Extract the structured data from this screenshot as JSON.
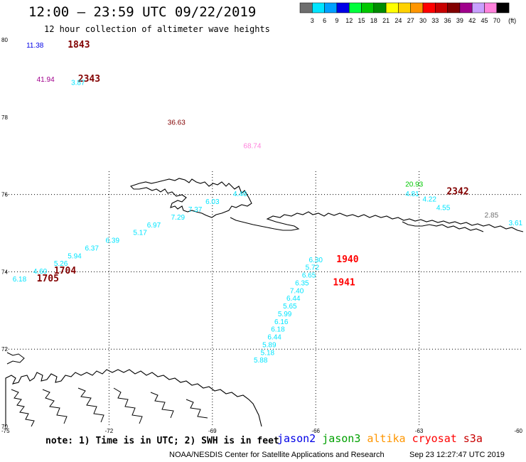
{
  "header": {
    "title": "12:00 – 23:59 UTC 09/22/2019",
    "subtitle": "12 hour collection of altimeter wave heights"
  },
  "legend": {
    "unit": "(ft)",
    "items": [
      {
        "label": "3",
        "color": "#6e6e6e"
      },
      {
        "label": "6",
        "color": "#00e5ff"
      },
      {
        "label": "9",
        "color": "#00a0ff"
      },
      {
        "label": "12",
        "color": "#0000e6"
      },
      {
        "label": "15",
        "color": "#00ff3c"
      },
      {
        "label": "18",
        "color": "#00c800"
      },
      {
        "label": "21",
        "color": "#008c00"
      },
      {
        "label": "24",
        "color": "#ffff00"
      },
      {
        "label": "27",
        "color": "#ffd200"
      },
      {
        "label": "30",
        "color": "#ff9600"
      },
      {
        "label": "33",
        "color": "#ff0000"
      },
      {
        "label": "36",
        "color": "#c80000"
      },
      {
        "label": "39",
        "color": "#820000"
      },
      {
        "label": "42",
        "color": "#a0008c"
      },
      {
        "label": "45",
        "color": "#c8a0ff"
      },
      {
        "label": "70",
        "color": "#ff82dc"
      },
      {
        "label": "",
        "color": "#000000"
      }
    ]
  },
  "map": {
    "lat_labels": [
      "80",
      "78",
      "76",
      "74",
      "72",
      "70"
    ],
    "lon_labels": [
      "-75",
      "-72",
      "-69",
      "-66",
      "-63",
      "-60"
    ],
    "labels": [
      {
        "text": "11.38",
        "lat": 79.8,
        "lon": -74.4,
        "color": "#0000e6"
      },
      {
        "text": "1843",
        "lat": 79.8,
        "lon": -73.2,
        "color": "#820000",
        "big": true
      },
      {
        "text": "41.94",
        "lat": 78.92,
        "lon": -74.1,
        "color": "#a0008c"
      },
      {
        "text": "2343",
        "lat": 78.92,
        "lon": -72.9,
        "color": "#820000",
        "big": true
      },
      {
        "text": "3.87",
        "lat": 78.83,
        "lon": -73.1,
        "color": "#00e5ff"
      },
      {
        "text": "36.63",
        "lat": 77.8,
        "lon": -70.3,
        "color": "#820000"
      },
      {
        "text": "68.74",
        "lat": 77.2,
        "lon": -68.1,
        "color": "#ff82dc"
      },
      {
        "text": "4.46",
        "lat": 75.96,
        "lon": -68.4,
        "color": "#00e5ff"
      },
      {
        "text": "6.03",
        "lat": 75.75,
        "lon": -69.2,
        "color": "#00e5ff"
      },
      {
        "text": "7.37",
        "lat": 75.55,
        "lon": -69.7,
        "color": "#00e5ff"
      },
      {
        "text": "7.29",
        "lat": 75.35,
        "lon": -70.2,
        "color": "#00e5ff"
      },
      {
        "text": "6.97",
        "lat": 75.15,
        "lon": -70.9,
        "color": "#00e5ff"
      },
      {
        "text": "5.17",
        "lat": 74.95,
        "lon": -71.3,
        "color": "#00e5ff"
      },
      {
        "text": "6.39",
        "lat": 74.75,
        "lon": -72.1,
        "color": "#00e5ff"
      },
      {
        "text": "6.37",
        "lat": 74.55,
        "lon": -72.7,
        "color": "#00e5ff"
      },
      {
        "text": "5.94",
        "lat": 74.35,
        "lon": -73.2,
        "color": "#00e5ff"
      },
      {
        "text": "5.26",
        "lat": 74.15,
        "lon": -73.6,
        "color": "#00e5ff"
      },
      {
        "text": "4.60",
        "lat": 73.95,
        "lon": -74.2,
        "color": "#00e5ff"
      },
      {
        "text": "1704",
        "lat": 73.95,
        "lon": -73.6,
        "color": "#820000",
        "big": true
      },
      {
        "text": "6.18",
        "lat": 73.75,
        "lon": -74.8,
        "color": "#00e5ff"
      },
      {
        "text": "1705",
        "lat": 73.75,
        "lon": -74.1,
        "color": "#820000",
        "big": true
      },
      {
        "text": "20.93",
        "lat": 76.2,
        "lon": -63.4,
        "color": "#00c800"
      },
      {
        "text": "4.81",
        "lat": 75.96,
        "lon": -63.4,
        "color": "#00e5ff"
      },
      {
        "text": "2342",
        "lat": 76.0,
        "lon": -62.2,
        "color": "#820000",
        "big": true
      },
      {
        "text": "4.22",
        "lat": 75.82,
        "lon": -62.9,
        "color": "#00e5ff"
      },
      {
        "text": "4.55",
        "lat": 75.6,
        "lon": -62.5,
        "color": "#00e5ff"
      },
      {
        "text": "2.85",
        "lat": 75.4,
        "lon": -61.1,
        "color": "#6e6e6e"
      },
      {
        "text": "3.61",
        "lat": 75.2,
        "lon": -60.4,
        "color": "#00e5ff"
      },
      {
        "text": "6.30",
        "lat": 74.25,
        "lon": -66.2,
        "color": "#00e5ff"
      },
      {
        "text": "1940",
        "lat": 74.25,
        "lon": -65.4,
        "color": "#ff0000",
        "big": true
      },
      {
        "text": "5.72",
        "lat": 74.05,
        "lon": -66.3,
        "color": "#00e5ff"
      },
      {
        "text": "6.65",
        "lat": 73.85,
        "lon": -66.4,
        "color": "#00e5ff"
      },
      {
        "text": "6.35",
        "lat": 73.65,
        "lon": -66.6,
        "color": "#00e5ff"
      },
      {
        "text": "1941",
        "lat": 73.65,
        "lon": -65.5,
        "color": "#ff0000",
        "big": true
      },
      {
        "text": "7.40",
        "lat": 73.45,
        "lon": -66.75,
        "color": "#00e5ff"
      },
      {
        "text": "6.44",
        "lat": 73.25,
        "lon": -66.85,
        "color": "#00e5ff"
      },
      {
        "text": "5.65",
        "lat": 73.05,
        "lon": -66.95,
        "color": "#00e5ff"
      },
      {
        "text": "5.99",
        "lat": 72.85,
        "lon": -67.1,
        "color": "#00e5ff"
      },
      {
        "text": "6.16",
        "lat": 72.65,
        "lon": -67.2,
        "color": "#00e5ff"
      },
      {
        "text": "6.18",
        "lat": 72.45,
        "lon": -67.3,
        "color": "#00e5ff"
      },
      {
        "text": "6.44",
        "lat": 72.25,
        "lon": -67.4,
        "color": "#00e5ff"
      },
      {
        "text": "5.89",
        "lat": 72.05,
        "lon": -67.55,
        "color": "#00e5ff"
      },
      {
        "text": "5.18",
        "lat": 71.85,
        "lon": -67.6,
        "color": "#00e5ff"
      },
      {
        "text": "5.88",
        "lat": 71.65,
        "lon": -67.8,
        "color": "#00e5ff"
      }
    ]
  },
  "footer": {
    "note": "note: 1) Time is in UTC; 2) SWH is in feet",
    "satellites": [
      {
        "name": "jason2",
        "color": "#0000e6"
      },
      {
        "name": "jason3",
        "color": "#00a000"
      },
      {
        "name": "altika",
        "color": "#ff9600"
      },
      {
        "name": "cryosat",
        "color": "#ff0000"
      },
      {
        "name": "s3a",
        "color": "#c80000"
      }
    ],
    "credit": "NOAA/NESDIS Center for Satellite Applications and Research",
    "timestamp": "Sep 23 12:27:47 UTC 2019"
  }
}
